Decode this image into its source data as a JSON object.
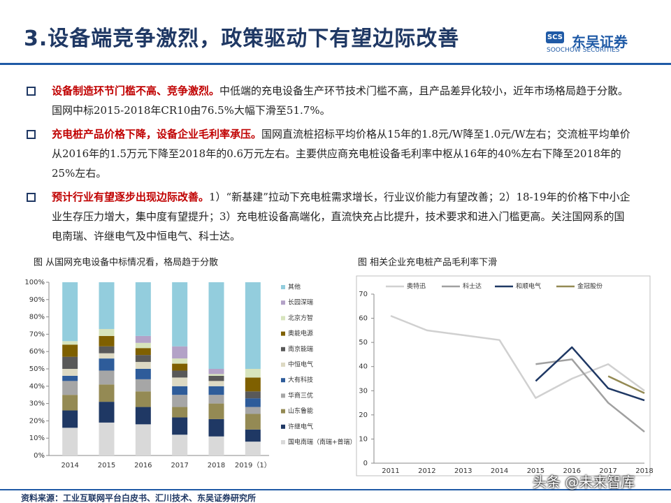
{
  "header": {
    "title": "3.设备端竞争激烈，政策驱动下有望边际改善",
    "logo_mark": "SCS",
    "logo_name": "东吴证券",
    "logo_en": "SOOCHOW SECURITIES"
  },
  "bullets": [
    {
      "lead": "设备制造环节门槛不高、竞争激烈。",
      "text": "中低端的充电设备生产环节技术门槛不高，且产品差异化较小，近年市场格局趋于分散。国网中标2015-2018年CR10由76.5%大幅下滑至51.7%。"
    },
    {
      "lead": "充电桩产品价格下降，设备企业毛利率承压。",
      "text": "国网直流桩招标平均价格从15年的1.8元/W降至1.0元/W左右；交流桩平均单价从2016年的1.5万元下降至2018年的0.6万元左右。主要供应商充电桩设备毛利率中枢从16年的40%左右下降至2018年的25%左右。"
    },
    {
      "lead": "预计行业有望逐步出现边际改善。",
      "text": "1）“新基建”拉动下充电桩需求增长，行业议价能力有望改善；2）18-19年的价格下中小企业生存压力增大，集中度有望提升；3）充电桩设备高端化，直流快充占比提升，技术要求和进入门槛更高。关注国网系的国电南瑞、许继电气及中恒电气、科士达。"
    }
  ],
  "chart_data": [
    {
      "type": "stacked_bar",
      "title": "图  从国网充电设备中标情况看，格局趋于分散",
      "categories": [
        "2014",
        "2015",
        "2016",
        "2017",
        "2018",
        "2019（1）"
      ],
      "ylim": [
        0,
        100
      ],
      "yticks": [
        {
          "value": 0,
          "label": "0%"
        },
        {
          "value": 10,
          "label": "10%"
        },
        {
          "value": 20,
          "label": "20%"
        },
        {
          "value": 30,
          "label": "30%"
        },
        {
          "value": 40,
          "label": "40%"
        },
        {
          "value": 50,
          "label": "50%"
        },
        {
          "value": 60,
          "label": "60%"
        },
        {
          "value": 70,
          "label": "70%"
        },
        {
          "value": 80,
          "label": "80%"
        },
        {
          "value": 90,
          "label": "90%"
        },
        {
          "value": 100,
          "label": "100%"
        }
      ],
      "series": [
        {
          "name": "国电南瑞（南瑞+普瑞）",
          "color": "#d9d9d9",
          "values": [
            16,
            19,
            18,
            12,
            11,
            8
          ]
        },
        {
          "name": "许继电气",
          "color": "#1f3864",
          "values": [
            10,
            12,
            10,
            10,
            10,
            7
          ]
        },
        {
          "name": "山东鲁能",
          "color": "#948a54",
          "values": [
            9,
            10,
            9,
            6,
            9,
            9
          ]
        },
        {
          "name": "华商三优",
          "color": "#a6a6a6",
          "values": [
            8,
            8,
            7,
            7,
            5,
            4
          ]
        },
        {
          "name": "大有科技",
          "color": "#2e5c9a",
          "values": [
            3,
            7,
            6,
            5,
            5,
            5
          ]
        },
        {
          "name": "中恒电气",
          "color": "#ddd9c3",
          "values": [
            4,
            3,
            4,
            5,
            3,
            0
          ]
        },
        {
          "name": "南京能瑞",
          "color": "#595959",
          "values": [
            7,
            4,
            4,
            4,
            3,
            4
          ]
        },
        {
          "name": "奥能电源",
          "color": "#7f6000",
          "values": [
            7,
            6,
            4,
            4,
            0,
            8
          ]
        },
        {
          "name": "北京方智",
          "color": "#d7e4bd",
          "values": [
            2,
            4,
            3,
            3,
            1,
            5
          ]
        },
        {
          "name": "长园深瑞",
          "color": "#b3a2c7",
          "values": [
            0,
            0,
            4,
            7,
            3,
            0
          ]
        },
        {
          "name": "其他",
          "color": "#93cddd",
          "values": [
            34,
            27,
            31,
            37,
            50,
            50
          ]
        }
      ]
    },
    {
      "type": "line",
      "title": "图  相关企业充电桩产品毛利率下滑",
      "categories": [
        "2011",
        "2012",
        "2013",
        "2014",
        "2015",
        "2016",
        "2017",
        "2018"
      ],
      "ylim": [
        0,
        70
      ],
      "yticks": [
        0,
        10,
        20,
        30,
        40,
        50,
        60,
        70
      ],
      "series": [
        {
          "name": "奥特迅",
          "color": "#d0d0d0",
          "values": [
            61,
            55,
            53,
            51,
            27,
            35,
            41,
            30
          ]
        },
        {
          "name": "科士达",
          "color": "#a0a0a0",
          "values": [
            null,
            null,
            null,
            null,
            41,
            43,
            25,
            13
          ]
        },
        {
          "name": "和顺电气",
          "color": "#1f3864",
          "values": [
            null,
            null,
            null,
            null,
            34,
            48,
            31,
            26
          ]
        },
        {
          "name": "金冠股份",
          "color": "#948a54",
          "values": [
            null,
            null,
            null,
            null,
            null,
            null,
            36,
            29
          ]
        }
      ]
    }
  ],
  "footer": "资料来源：工业互联网平台白皮书、汇川技术、东吴证券研究所",
  "watermark": "头条 @未来智库"
}
